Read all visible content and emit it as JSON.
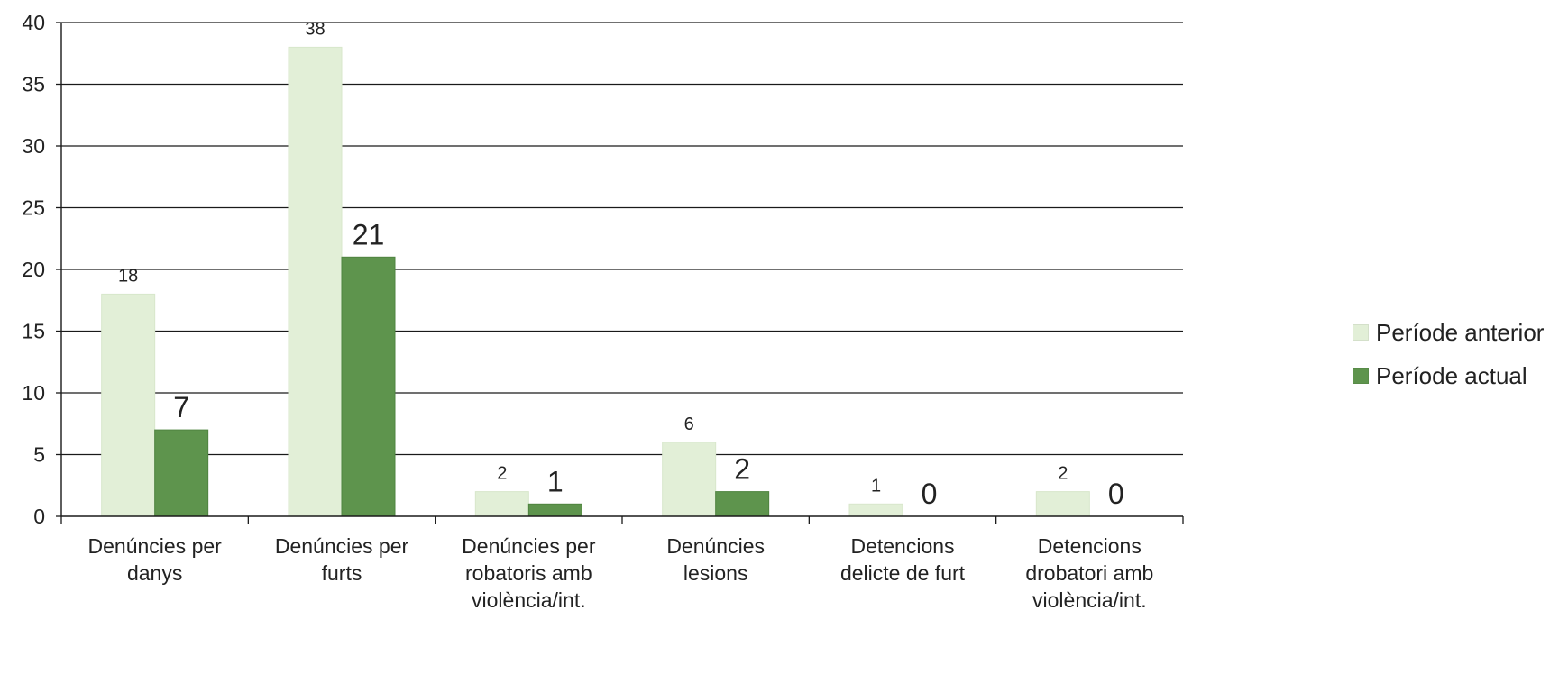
{
  "chart_data": {
    "type": "bar",
    "categories": [
      [
        "Denúncies per",
        "danys"
      ],
      [
        "Denúncies per",
        "furts"
      ],
      [
        "Denúncies per",
        "robatoris amb",
        "violència/int."
      ],
      [
        "Denúncies",
        "lesions"
      ],
      [
        "Detencions",
        "delicte de furt"
      ],
      [
        "Detencions",
        "drobatori amb",
        "violència/int."
      ]
    ],
    "series": [
      {
        "name": "Període anterior",
        "color": "#e2efd7",
        "values": [
          18,
          38,
          2,
          6,
          1,
          2
        ],
        "labels": [
          "18",
          "38",
          "2",
          "6",
          "1",
          "2"
        ]
      },
      {
        "name": "Període actual",
        "color": "#5e944d",
        "values": [
          7,
          21,
          1,
          2,
          0,
          0
        ],
        "labels": [
          "7",
          "21",
          "1",
          "2",
          "0",
          "0"
        ]
      }
    ],
    "ylim": [
      0,
      40
    ],
    "yticks": [
      "0",
      "5",
      "10",
      "15",
      "20",
      "25",
      "30",
      "35",
      "40"
    ],
    "grid": true,
    "legend_position": "right"
  }
}
